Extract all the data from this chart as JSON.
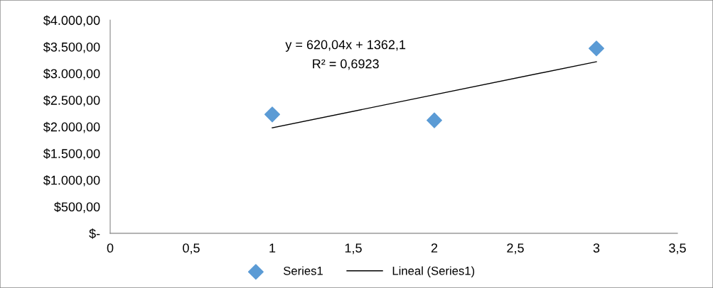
{
  "chart_data": {
    "type": "scatter",
    "xlim": [
      0,
      3.5
    ],
    "xticks": [
      {
        "value": 0,
        "label": "0"
      },
      {
        "value": 0.5,
        "label": "0,5"
      },
      {
        "value": 1,
        "label": "1"
      },
      {
        "value": 1.5,
        "label": "1,5"
      },
      {
        "value": 2,
        "label": "2"
      },
      {
        "value": 2.5,
        "label": "2,5"
      },
      {
        "value": 3,
        "label": "3"
      },
      {
        "value": 3.5,
        "label": "3,5"
      }
    ],
    "ylim": [
      0,
      4000
    ],
    "yticks": [
      {
        "value": 0,
        "label": "$-"
      },
      {
        "value": 500,
        "label": "$500,00"
      },
      {
        "value": 1000,
        "label": "$1.000,00"
      },
      {
        "value": 1500,
        "label": "$1.500,00"
      },
      {
        "value": 2000,
        "label": "$2.000,00"
      },
      {
        "value": 2500,
        "label": "$2.500,00"
      },
      {
        "value": 3000,
        "label": "$3.000,00"
      },
      {
        "value": 3500,
        "label": "$3.500,00"
      },
      {
        "value": 4000,
        "label": "$4.000,00"
      }
    ],
    "series": [
      {
        "name": "Series1",
        "color": "#5b9bd5",
        "marker": "diamond",
        "x": [
          1,
          2,
          3
        ],
        "values": [
          2230,
          2120,
          3470
        ]
      },
      {
        "name": "Lineal (Series1)",
        "type": "line",
        "color": "#000000",
        "marker": "none",
        "line_style": "solid",
        "x": [
          1,
          3
        ],
        "values": [
          1980,
          3220
        ]
      }
    ],
    "annotations": [
      "y = 620,04x + 1362,1",
      "R² = 0,6923"
    ],
    "grid": false,
    "legend": "bottom"
  }
}
